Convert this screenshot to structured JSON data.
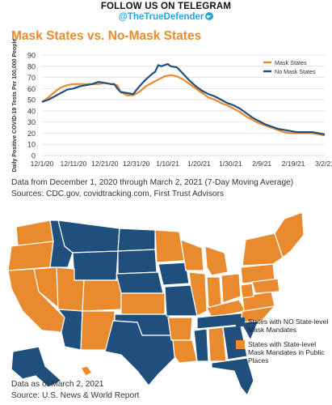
{
  "header": {
    "line1": "FOLLOW US ON TELEGRAM",
    "line2": "@TheTrueDefender"
  },
  "chart_data": [
    {
      "type": "line",
      "title": "Mask States vs. No-Mask States",
      "ylabel": "Daily Positive COVID-19 Tests Per 100,000 People",
      "xlabel": "",
      "ylim": [
        0,
        90
      ],
      "yticks": [
        "0",
        "10",
        "20",
        "30",
        "40",
        "50",
        "60",
        "70",
        "80",
        "90"
      ],
      "x_tick_labels": [
        "12/1/20",
        "12/11/20",
        "12/21/20",
        "12/31/20",
        "1/10/21",
        "1/20/21",
        "1/30/21",
        "2/9/21",
        "2/19/21",
        "3/2/21"
      ],
      "legend_position": "top-right",
      "x_start": "12/1/20",
      "x_end": "3/2/21",
      "series": [
        {
          "name": "Mask States",
          "color": "#e98a2e",
          "values": [
            [
              0,
              48
            ],
            [
              2,
              52
            ],
            [
              4,
              57
            ],
            [
              6,
              61
            ],
            [
              8,
              63
            ],
            [
              10,
              64
            ],
            [
              12,
              64
            ],
            [
              14,
              64
            ],
            [
              16,
              64
            ],
            [
              18,
              64
            ],
            [
              20,
              65
            ],
            [
              22,
              64
            ],
            [
              24,
              63
            ],
            [
              25,
              57
            ],
            [
              27,
              54
            ],
            [
              29,
              54
            ],
            [
              31,
              57
            ],
            [
              33,
              62
            ],
            [
              35,
              65
            ],
            [
              37,
              68
            ],
            [
              39,
              71
            ],
            [
              41,
              72
            ],
            [
              43,
              71
            ],
            [
              45,
              68
            ],
            [
              47,
              64
            ],
            [
              49,
              60
            ],
            [
              51,
              56
            ],
            [
              53,
              52
            ],
            [
              55,
              50
            ],
            [
              57,
              47
            ],
            [
              59,
              45
            ],
            [
              61,
              42
            ],
            [
              63,
              39
            ],
            [
              65,
              35
            ],
            [
              67,
              32
            ],
            [
              69,
              29
            ],
            [
              71,
              27
            ],
            [
              73,
              25
            ],
            [
              75,
              23
            ],
            [
              77,
              21
            ],
            [
              79,
              20
            ],
            [
              81,
              20
            ],
            [
              83,
              20
            ],
            [
              86,
              20
            ],
            [
              88,
              19
            ],
            [
              90,
              18
            ]
          ]
        },
        {
          "name": "No Mask States",
          "color": "#1e4f7d",
          "values": [
            [
              0,
              48
            ],
            [
              2,
              50
            ],
            [
              4,
              53
            ],
            [
              6,
              56
            ],
            [
              8,
              59
            ],
            [
              10,
              60
            ],
            [
              12,
              62
            ],
            [
              14,
              63
            ],
            [
              16,
              64
            ],
            [
              18,
              66
            ],
            [
              20,
              65
            ],
            [
              22,
              64
            ],
            [
              23,
              64
            ],
            [
              24,
              60
            ],
            [
              25,
              57
            ],
            [
              27,
              56
            ],
            [
              29,
              55
            ],
            [
              31,
              62
            ],
            [
              33,
              68
            ],
            [
              35,
              73
            ],
            [
              36,
              75
            ],
            [
              37,
              81
            ],
            [
              38,
              80
            ],
            [
              40,
              82
            ],
            [
              41,
              80
            ],
            [
              43,
              79
            ],
            [
              45,
              73
            ],
            [
              47,
              67
            ],
            [
              49,
              62
            ],
            [
              51,
              58
            ],
            [
              53,
              55
            ],
            [
              55,
              53
            ],
            [
              57,
              50
            ],
            [
              59,
              47
            ],
            [
              61,
              45
            ],
            [
              63,
              42
            ],
            [
              65,
              38
            ],
            [
              67,
              34
            ],
            [
              69,
              31
            ],
            [
              71,
              28
            ],
            [
              73,
              26
            ],
            [
              75,
              24
            ],
            [
              77,
              23
            ],
            [
              79,
              22
            ],
            [
              81,
              21
            ],
            [
              83,
              21
            ],
            [
              86,
              21
            ],
            [
              88,
              20
            ],
            [
              90,
              19
            ]
          ]
        }
      ]
    }
  ],
  "captions": {
    "chart_note1": "Data from December 1, 2020 through March 2, 2021 (7-Day Moving Average)",
    "chart_note2": "Sources: CDC.gov, covidtracking.com, First Trust Advisors",
    "map_note1": "Data as of March 2, 2021",
    "map_note2": "Source: U.S. News & World Report"
  },
  "map_legend": [
    {
      "label": "States with NO State-level Mask Mandates",
      "color": "#1e4f7d"
    },
    {
      "label": "States with State-level Mask Mandates in Public Places",
      "color": "#e98a2e"
    }
  ],
  "colors": {
    "mask": "#e98a2e",
    "no_mask": "#1e4f7d",
    "grid": "#d9d9d9"
  }
}
